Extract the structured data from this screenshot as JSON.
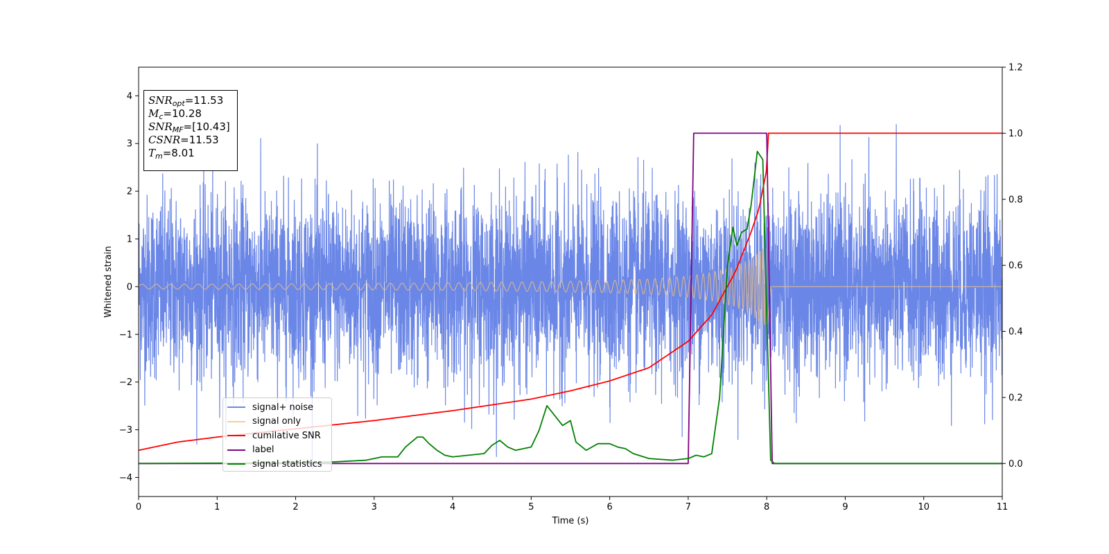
{
  "chart_data": {
    "type": "line",
    "xlabel": "Time (s)",
    "ylabel": "Whitened strain",
    "xlim": [
      0,
      11
    ],
    "ylim_left": [
      -4.4,
      4.6
    ],
    "ylim_right": [
      -0.1,
      1.2
    ],
    "x_ticks": [
      "0",
      "1",
      "2",
      "3",
      "4",
      "5",
      "6",
      "7",
      "8",
      "9",
      "10",
      "11"
    ],
    "y_ticks_left": [
      "4",
      "3",
      "2",
      "1",
      "0",
      "−1",
      "−2",
      "−3",
      "−4"
    ],
    "y_ticks_right": [
      "1.2",
      "1.0",
      "0.8",
      "0.6",
      "0.4",
      "0.2",
      "0.0"
    ],
    "legend_location": "lower left",
    "info_box": {
      "snr_opt": "=11.53",
      "mc": "=10.28",
      "snr_mf": "=[10.43]",
      "csnr": "=11.53",
      "tm": "=8.01"
    },
    "series": [
      {
        "name": "signal+ noise",
        "color": "#6a86e6",
        "axis": "left",
        "description_values": {
          "std": 0.95,
          "t_start": 0,
          "t_end": 11
        }
      },
      {
        "name": "signal only",
        "color": "#f5c27a",
        "axis": "left",
        "envelope_x": [
          0,
          2,
          4,
          5,
          6,
          6.5,
          7,
          7.3,
          7.6,
          7.8,
          7.95,
          8.01,
          8.05,
          11
        ],
        "envelope_y": [
          0.05,
          0.06,
          0.08,
          0.1,
          0.13,
          0.16,
          0.22,
          0.3,
          0.42,
          0.58,
          0.8,
          0.8,
          0.0,
          0.0
        ]
      },
      {
        "name": "cumilative SNR",
        "color": "#ff0000",
        "axis": "right",
        "x": [
          0,
          0.5,
          1,
          2,
          3,
          4,
          5,
          5.5,
          6,
          6.5,
          7,
          7.3,
          7.6,
          7.8,
          7.9,
          8.0,
          8.01,
          11
        ],
        "y": [
          0.04,
          0.065,
          0.08,
          0.105,
          0.13,
          0.16,
          0.195,
          0.22,
          0.25,
          0.29,
          0.37,
          0.45,
          0.58,
          0.7,
          0.77,
          0.89,
          1.0,
          1.0
        ]
      },
      {
        "name": "label",
        "color": "#800080",
        "axis": "right",
        "x": [
          0,
          7.0,
          7.07,
          8.0,
          8.07,
          11
        ],
        "y": [
          0,
          0,
          1,
          1,
          0,
          0
        ]
      },
      {
        "name": "signal statistics",
        "color": "#008000",
        "axis": "right",
        "x": [
          0,
          2,
          2.5,
          2.9,
          3.1,
          3.3,
          3.4,
          3.55,
          3.62,
          3.7,
          3.8,
          3.9,
          4.0,
          4.2,
          4.4,
          4.5,
          4.6,
          4.7,
          4.8,
          4.9,
          5.0,
          5.1,
          5.2,
          5.3,
          5.4,
          5.5,
          5.57,
          5.7,
          5.85,
          6.0,
          6.1,
          6.2,
          6.3,
          6.5,
          6.8,
          7.0,
          7.1,
          7.2,
          7.3,
          7.4,
          7.5,
          7.57,
          7.62,
          7.68,
          7.75,
          7.8,
          7.88,
          7.95,
          8.0,
          8.05,
          8.1,
          9,
          11
        ],
        "y": [
          0.0,
          0.002,
          0.005,
          0.01,
          0.02,
          0.02,
          0.05,
          0.08,
          0.08,
          0.06,
          0.04,
          0.025,
          0.02,
          0.025,
          0.03,
          0.055,
          0.07,
          0.05,
          0.04,
          0.045,
          0.05,
          0.1,
          0.175,
          0.145,
          0.115,
          0.13,
          0.065,
          0.04,
          0.06,
          0.06,
          0.05,
          0.045,
          0.03,
          0.015,
          0.01,
          0.015,
          0.025,
          0.02,
          0.03,
          0.2,
          0.6,
          0.715,
          0.66,
          0.7,
          0.71,
          0.78,
          0.945,
          0.92,
          0.45,
          0.01,
          0.0,
          0.0,
          0.0
        ]
      }
    ]
  }
}
